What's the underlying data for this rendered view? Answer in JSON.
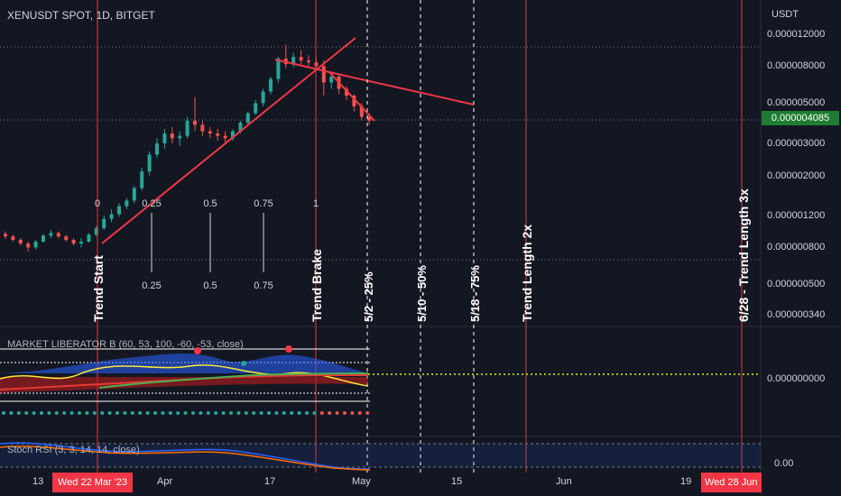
{
  "header": {
    "symbol": "XENUSDT SPOT, 1D, BITGET",
    "currency": "USDT"
  },
  "price_axis": {
    "labels": [
      "0.000012000",
      "0.000008000",
      "0.000005000",
      "0.000003000",
      "0.000002000",
      "0.000001200",
      "0.000000800",
      "0.000000500",
      "0.000000340"
    ],
    "last_price": "0.000004085",
    "indicator_zero": "0.000000000",
    "stoch_zero": "0.00"
  },
  "time_axis": {
    "labels": [
      "13",
      "Apr",
      "17",
      "May",
      "15",
      "Jun",
      "19"
    ],
    "highlight_start": "Wed 22 Mar '23",
    "highlight_end": "Wed 28 Jun"
  },
  "indicators": {
    "market_liberator": "MARKET LIBERATOR B (60, 53, 100, -60, -53, close)",
    "stoch_rsi": "Stoch RSI (3, 3, 14, 14, close)"
  },
  "annotations": {
    "fib_top": [
      "0",
      "0.25",
      "0.5",
      "0.75",
      "1"
    ],
    "fib_bottom": [
      "0.25",
      "0.5",
      "0.75"
    ],
    "trend_start": "Trend Start",
    "trend_brake": "Trend Brake",
    "d25": "5/2 - 25%",
    "d50": "5/10 - 50%",
    "d75": "5/18 - 75%",
    "length2x": "Trend Length 2x",
    "length3x": "6/28 - Trend Length 3x"
  },
  "colors": {
    "background": "#131722",
    "up": "#26a69a",
    "down": "#ef5350",
    "trendline": "#f23645",
    "last_price_bg": "#1e7d32"
  },
  "chart_data": {
    "type": "candlestick",
    "scale": "log",
    "x_start": "2023-03-08",
    "candles": [
      {
        "o": 9.5e-07,
        "h": 9.8e-07,
        "l": 8.9e-07,
        "c": 9.2e-07
      },
      {
        "o": 9.2e-07,
        "h": 9.4e-07,
        "l": 8.6e-07,
        "c": 8.8e-07
      },
      {
        "o": 8.8e-07,
        "h": 9e-07,
        "l": 8.2e-07,
        "c": 8.4e-07
      },
      {
        "o": 8.4e-07,
        "h": 8.6e-07,
        "l": 7.6e-07,
        "c": 8e-07
      },
      {
        "o": 8e-07,
        "h": 8.8e-07,
        "l": 7.8e-07,
        "c": 8.6e-07
      },
      {
        "o": 8.6e-07,
        "h": 9.5e-07,
        "l": 8.5e-07,
        "c": 9.3e-07
      },
      {
        "o": 9.3e-07,
        "h": 1e-06,
        "l": 9e-07,
        "c": 9.6e-07
      },
      {
        "o": 9.6e-07,
        "h": 9.8e-07,
        "l": 9e-07,
        "c": 9.2e-07
      },
      {
        "o": 9.2e-07,
        "h": 9.4e-07,
        "l": 8.6e-07,
        "c": 8.8e-07
      },
      {
        "o": 8.8e-07,
        "h": 9e-07,
        "l": 8.2e-07,
        "c": 8.4e-07
      },
      {
        "o": 8.4e-07,
        "h": 9e-07,
        "l": 8e-07,
        "c": 8.6e-07
      },
      {
        "o": 8.6e-07,
        "h": 9.6e-07,
        "l": 8.5e-07,
        "c": 9.4e-07
      },
      {
        "o": 9.4e-07,
        "h": 1.05e-06,
        "l": 9.2e-07,
        "c": 1.02e-06
      },
      {
        "o": 1.02e-06,
        "h": 1.2e-06,
        "l": 1e-06,
        "c": 1.15e-06
      },
      {
        "o": 1.15e-06,
        "h": 1.3e-06,
        "l": 1.1e-06,
        "c": 1.22e-06
      },
      {
        "o": 1.22e-06,
        "h": 1.4e-06,
        "l": 1.18e-06,
        "c": 1.35e-06
      },
      {
        "o": 1.35e-06,
        "h": 1.5e-06,
        "l": 1.3e-06,
        "c": 1.45e-06
      },
      {
        "o": 1.45e-06,
        "h": 1.75e-06,
        "l": 1.4e-06,
        "c": 1.7e-06
      },
      {
        "o": 1.7e-06,
        "h": 2.2e-06,
        "l": 1.65e-06,
        "c": 2.1e-06
      },
      {
        "o": 2.1e-06,
        "h": 2.7e-06,
        "l": 2e-06,
        "c": 2.6e-06
      },
      {
        "o": 2.6e-06,
        "h": 3.2e-06,
        "l": 2.5e-06,
        "c": 3e-06
      },
      {
        "o": 3e-06,
        "h": 3.6e-06,
        "l": 2.8e-06,
        "c": 3.4e-06
      },
      {
        "o": 3.4e-06,
        "h": 3.7e-06,
        "l": 3e-06,
        "c": 3.2e-06
      },
      {
        "o": 3.2e-06,
        "h": 3.5e-06,
        "l": 2.9e-06,
        "c": 3.3e-06
      },
      {
        "o": 3.3e-06,
        "h": 4.2e-06,
        "l": 3.2e-06,
        "c": 4e-06
      },
      {
        "o": 4e-06,
        "h": 5.4e-06,
        "l": 3.5e-06,
        "c": 3.8e-06
      },
      {
        "o": 3.8e-06,
        "h": 4e-06,
        "l": 3.3e-06,
        "c": 3.5e-06
      },
      {
        "o": 3.5e-06,
        "h": 3.7e-06,
        "l": 3.2e-06,
        "c": 3.4e-06
      },
      {
        "o": 3.4e-06,
        "h": 3.6e-06,
        "l": 3.1e-06,
        "c": 3.3e-06
      },
      {
        "o": 3.3e-06,
        "h": 3.5e-06,
        "l": 3e-06,
        "c": 3.2e-06
      },
      {
        "o": 3.2e-06,
        "h": 3.6e-06,
        "l": 3.1e-06,
        "c": 3.5e-06
      },
      {
        "o": 3.5e-06,
        "h": 4e-06,
        "l": 3.4e-06,
        "c": 3.9e-06
      },
      {
        "o": 3.9e-06,
        "h": 4.5e-06,
        "l": 3.8e-06,
        "c": 4.4e-06
      },
      {
        "o": 4.4e-06,
        "h": 5.2e-06,
        "l": 4.3e-06,
        "c": 5e-06
      },
      {
        "o": 5e-06,
        "h": 6e-06,
        "l": 4.8e-06,
        "c": 5.8e-06
      },
      {
        "o": 5.8e-06,
        "h": 7e-06,
        "l": 5.6e-06,
        "c": 6.8e-06
      },
      {
        "o": 6.8e-06,
        "h": 9e-06,
        "l": 6.5e-06,
        "c": 8.8e-06
      },
      {
        "o": 8.8e-06,
        "h": 1.05e-05,
        "l": 7.8e-06,
        "c": 8.2e-06
      },
      {
        "o": 8.2e-06,
        "h": 9.5e-06,
        "l": 7.9e-06,
        "c": 9e-06
      },
      {
        "o": 9e-06,
        "h": 9.8e-06,
        "l": 8.2e-06,
        "c": 8.6e-06
      },
      {
        "o": 8.6e-06,
        "h": 9.2e-06,
        "l": 8e-06,
        "c": 8.4e-06
      },
      {
        "o": 8.4e-06,
        "h": 9e-06,
        "l": 7.8e-06,
        "c": 8e-06
      },
      {
        "o": 8e-06,
        "h": 8.6e-06,
        "l": 5.5e-06,
        "c": 6.5e-06
      },
      {
        "o": 6.5e-06,
        "h": 7.5e-06,
        "l": 6e-06,
        "c": 7e-06
      },
      {
        "o": 7e-06,
        "h": 7.2e-06,
        "l": 5.6e-06,
        "c": 6e-06
      },
      {
        "o": 6e-06,
        "h": 6.2e-06,
        "l": 5.2e-06,
        "c": 5.5e-06
      },
      {
        "o": 5.5e-06,
        "h": 5.6e-06,
        "l": 4.5e-06,
        "c": 4.8e-06
      },
      {
        "o": 4.8e-06,
        "h": 5e-06,
        "l": 4e-06,
        "c": 4.2e-06
      },
      {
        "o": 4.2e-06,
        "h": 4.4e-06,
        "l": 3.8e-06,
        "c": 4e-06
      }
    ]
  }
}
